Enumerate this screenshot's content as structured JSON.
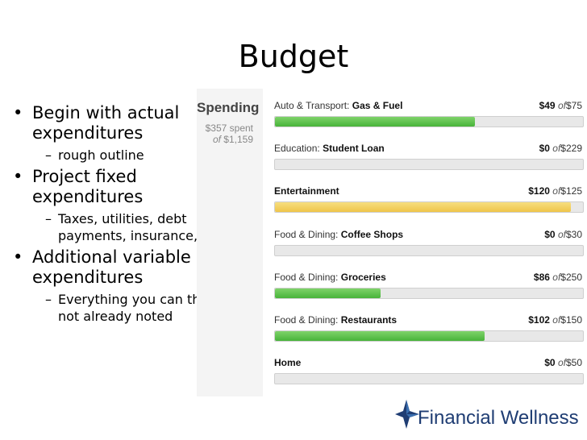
{
  "slide": {
    "title": "Budget",
    "bullets": [
      {
        "text": "Begin with actual expenditures",
        "subs": [
          "rough outline"
        ]
      },
      {
        "text": "Project fixed expenditures",
        "subs": [
          "Taxes, utilities, debt payments, insurance, etc."
        ]
      },
      {
        "text": "Additional variable expenditures",
        "subs": [
          "Everything you can think of not already noted"
        ]
      }
    ]
  },
  "spending": {
    "title": "Spending",
    "spent_text": "$357 spent",
    "of_word": "of",
    "total": "$1,159"
  },
  "categories": [
    {
      "group": "Auto & Transport:",
      "name": "Gas & Fuel",
      "spent": "$49",
      "of_word": "of",
      "budget": "$75",
      "fraction": 0.65,
      "color": "green"
    },
    {
      "group": "Education:",
      "name": "Student Loan",
      "spent": "$0",
      "of_word": "of",
      "budget": "$229",
      "fraction": 0,
      "color": "green"
    },
    {
      "group": "",
      "name": "Entertainment",
      "spent": "$120",
      "of_word": "of",
      "budget": "$125",
      "fraction": 0.96,
      "color": "yellow"
    },
    {
      "group": "Food & Dining:",
      "name": "Coffee Shops",
      "spent": "$0",
      "of_word": "of",
      "budget": "$30",
      "fraction": 0,
      "color": "green"
    },
    {
      "group": "Food & Dining:",
      "name": "Groceries",
      "spent": "$86",
      "of_word": "of",
      "budget": "$250",
      "fraction": 0.344,
      "color": "green"
    },
    {
      "group": "Food & Dining:",
      "name": "Restaurants",
      "spent": "$102",
      "of_word": "of",
      "budget": "$150",
      "fraction": 0.68,
      "color": "green"
    },
    {
      "group": "",
      "name": "Home",
      "spent": "$0",
      "of_word": "of",
      "budget": "$50",
      "fraction": 0,
      "color": "green"
    }
  ],
  "colors": {
    "green": "#48b33a",
    "yellow": "#efc54a",
    "logo_blue": "#1f3d73"
  },
  "logo": {
    "text": "Financial Wellness",
    "icon": "star-compass-icon"
  }
}
